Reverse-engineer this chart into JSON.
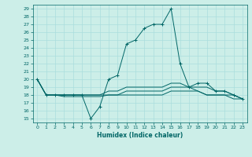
{
  "background_color": "#cceee8",
  "grid_color": "#aadddd",
  "line_color": "#006666",
  "xlabel": "Humidex (Indice chaleur)",
  "xlim": [
    -0.5,
    23.5
  ],
  "ylim": [
    14.5,
    29.5
  ],
  "yticks": [
    15,
    16,
    17,
    18,
    19,
    20,
    21,
    22,
    23,
    24,
    25,
    26,
    27,
    28,
    29
  ],
  "xticks": [
    0,
    1,
    2,
    3,
    4,
    5,
    6,
    7,
    8,
    9,
    10,
    11,
    12,
    13,
    14,
    15,
    16,
    17,
    18,
    19,
    20,
    21,
    22,
    23
  ],
  "lines": [
    {
      "x": [
        0,
        1,
        2,
        3,
        4,
        5,
        6,
        7,
        8,
        9,
        10,
        11,
        12,
        13,
        14,
        15,
        16,
        17,
        18,
        19,
        20,
        21,
        22,
        23
      ],
      "y": [
        20,
        18,
        18,
        18,
        18,
        18,
        15,
        16.5,
        20,
        20.5,
        24.5,
        25,
        26.5,
        27,
        27,
        29,
        22,
        19,
        19.5,
        19.5,
        18.5,
        18.5,
        18,
        17.5
      ],
      "marker": "+"
    },
    {
      "x": [
        0,
        1,
        2,
        3,
        4,
        5,
        6,
        7,
        8,
        9,
        10,
        11,
        12,
        13,
        14,
        15,
        16,
        17,
        18,
        19,
        20,
        21,
        22,
        23
      ],
      "y": [
        20,
        18,
        18,
        18,
        18,
        18,
        18,
        18,
        18.5,
        18.5,
        19,
        19,
        19,
        19,
        19,
        19.5,
        19.5,
        19,
        19,
        19,
        18.5,
        18.5,
        18,
        17.5
      ],
      "marker": null
    },
    {
      "x": [
        0,
        1,
        2,
        3,
        4,
        5,
        6,
        7,
        8,
        9,
        10,
        11,
        12,
        13,
        14,
        15,
        16,
        17,
        18,
        19,
        20,
        21,
        22,
        23
      ],
      "y": [
        20,
        18,
        18,
        17.8,
        17.8,
        17.8,
        17.8,
        17.8,
        18,
        18,
        18,
        18,
        18,
        18,
        18,
        18.5,
        18.5,
        18.5,
        18.5,
        18,
        18,
        18,
        18,
        17.5
      ],
      "marker": null
    },
    {
      "x": [
        0,
        1,
        2,
        3,
        4,
        5,
        6,
        7,
        8,
        9,
        10,
        11,
        12,
        13,
        14,
        15,
        16,
        17,
        18,
        19,
        20,
        21,
        22,
        23
      ],
      "y": [
        20,
        18,
        18,
        18,
        18,
        18,
        18,
        18,
        18,
        18,
        18.5,
        18.5,
        18.5,
        18.5,
        18.5,
        19,
        19,
        19,
        18.5,
        18,
        18,
        18,
        17.5,
        17.5
      ],
      "marker": null
    }
  ]
}
